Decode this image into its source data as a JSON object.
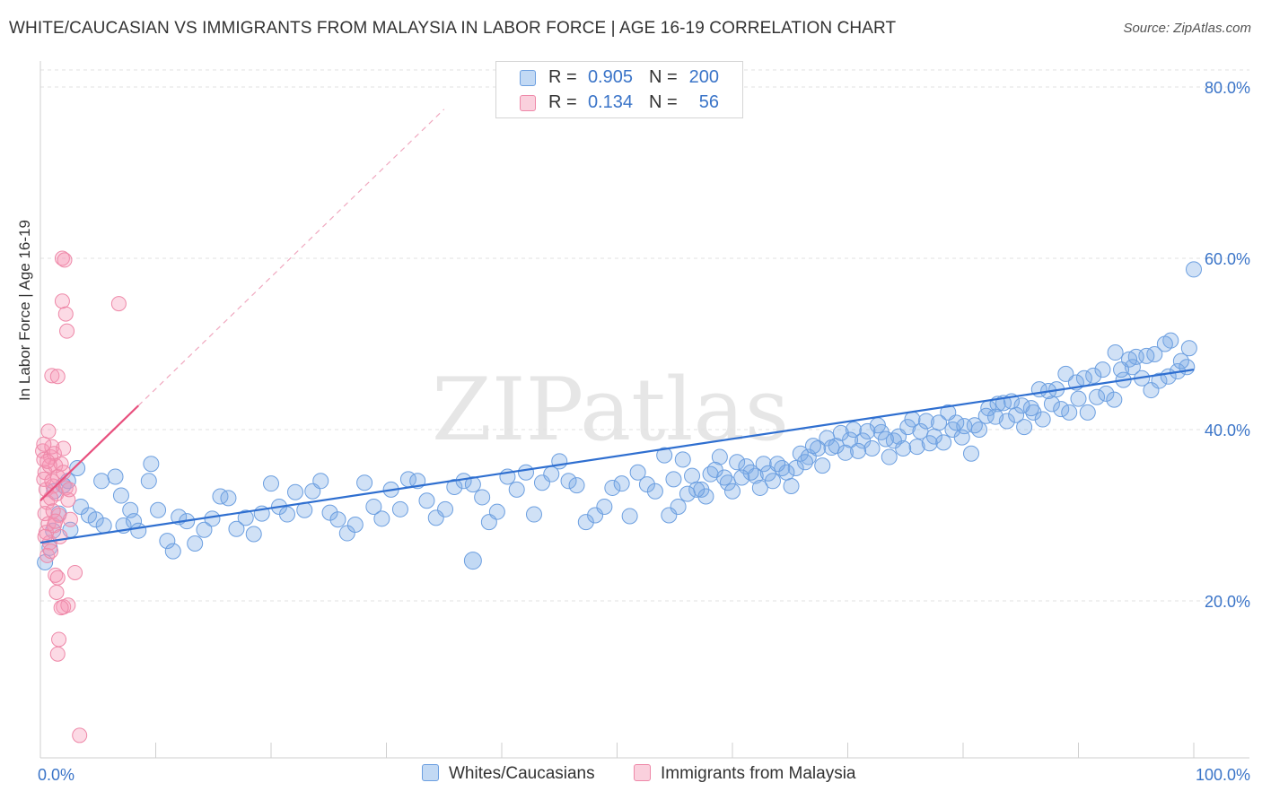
{
  "title": "WHITE/CAUCASIAN VS IMMIGRANTS FROM MALAYSIA IN LABOR FORCE | AGE 16-19 CORRELATION CHART",
  "source": "Source: ZipAtlas.com",
  "watermark": "ZIPatlas",
  "legend": {
    "series1": {
      "r_label": "R =",
      "r_value": "0.905",
      "n_label": "N =",
      "n_value": "200"
    },
    "series2": {
      "r_label": "R =",
      "r_value": "0.134",
      "n_label": "N =",
      "n_value": "56"
    }
  },
  "bottom_legend": {
    "series1": "Whites/Caucasians",
    "series2": "Immigrants from Malaysia"
  },
  "colors": {
    "blue_fill": "rgba(120,170,230,0.35)",
    "blue_stroke": "#6c9fe0",
    "blue_line": "#2f6fd0",
    "pink_fill": "rgba(245,150,180,0.35)",
    "pink_stroke": "#ee88a8",
    "pink_line": "#e8507e",
    "tick_text": "#3a74c8",
    "grid": "#e2e2e2"
  },
  "chart_data": {
    "type": "scatter",
    "title": "WHITE/CAUCASIAN VS IMMIGRANTS FROM MALAYSIA IN LABOR FORCE | AGE 16-19 CORRELATION CHART",
    "xlabel": "",
    "ylabel": "In Labor Force | Age 16-19",
    "xlim": [
      0,
      100
    ],
    "ylim": [
      0,
      85
    ],
    "x_tick_labels": [
      "0.0%",
      "100.0%"
    ],
    "y_ticks": [
      20,
      40,
      60,
      80
    ],
    "y_tick_labels": [
      "20.0%",
      "40.0%",
      "60.0%",
      "80.0%"
    ],
    "grid": true,
    "legend_placement": "top-center",
    "series": [
      {
        "name": "Whites/Caucasians",
        "r": 0.905,
        "n": 200,
        "trend": {
          "x": [
            0,
            100
          ],
          "y": [
            26.8,
            47.0
          ]
        },
        "points": [
          [
            0.4,
            24.5
          ],
          [
            0.8,
            26.2
          ],
          [
            1.1,
            28.2
          ],
          [
            1.6,
            30.2
          ],
          [
            1.2,
            32.8
          ],
          [
            2.0,
            33.5
          ],
          [
            2.4,
            34.0
          ],
          [
            3.2,
            35.5
          ],
          [
            2.6,
            28.3
          ],
          [
            3.5,
            31.0
          ],
          [
            4.2,
            30.0
          ],
          [
            5.3,
            34.0
          ],
          [
            6.5,
            34.5
          ],
          [
            4.8,
            29.5
          ],
          [
            5.5,
            28.8
          ],
          [
            7.0,
            32.3
          ],
          [
            7.8,
            30.6
          ],
          [
            7.2,
            28.8
          ],
          [
            8.1,
            29.3
          ],
          [
            9.4,
            34.0
          ],
          [
            8.5,
            28.2
          ],
          [
            9.6,
            36.0
          ],
          [
            10.2,
            30.6
          ],
          [
            11.0,
            27.0
          ],
          [
            11.5,
            25.8
          ],
          [
            12.0,
            29.8
          ],
          [
            12.7,
            29.3
          ],
          [
            13.4,
            26.7
          ],
          [
            14.2,
            28.3
          ],
          [
            14.9,
            29.6
          ],
          [
            15.6,
            32.2
          ],
          [
            16.3,
            32.0
          ],
          [
            17.0,
            28.4
          ],
          [
            17.8,
            29.7
          ],
          [
            18.5,
            27.8
          ],
          [
            19.2,
            30.2
          ],
          [
            20.0,
            33.7
          ],
          [
            20.7,
            31.0
          ],
          [
            21.4,
            30.1
          ],
          [
            22.1,
            32.7
          ],
          [
            22.9,
            30.6
          ],
          [
            23.6,
            32.8
          ],
          [
            24.3,
            34.0
          ],
          [
            25.1,
            30.3
          ],
          [
            25.8,
            29.5
          ],
          [
            26.6,
            27.9
          ],
          [
            27.3,
            28.9
          ],
          [
            28.1,
            33.8
          ],
          [
            28.9,
            31.0
          ],
          [
            29.6,
            29.6
          ],
          [
            30.4,
            33.0
          ],
          [
            31.2,
            30.7
          ],
          [
            31.9,
            34.2
          ],
          [
            32.7,
            34.0
          ],
          [
            33.5,
            31.7
          ],
          [
            34.3,
            29.7
          ],
          [
            35.1,
            30.7
          ],
          [
            35.9,
            33.3
          ],
          [
            36.7,
            34.0
          ],
          [
            37.5,
            33.6
          ],
          [
            38.3,
            32.1
          ],
          [
            38.9,
            29.2
          ],
          [
            39.6,
            30.4
          ],
          [
            40.5,
            34.5
          ],
          [
            41.3,
            33.0
          ],
          [
            42.1,
            35.0
          ],
          [
            42.8,
            30.1
          ],
          [
            43.5,
            33.8
          ],
          [
            44.3,
            34.8
          ],
          [
            45.0,
            36.3
          ],
          [
            45.8,
            34.0
          ],
          [
            46.5,
            33.5
          ],
          [
            47.3,
            29.2
          ],
          [
            48.1,
            30.0
          ],
          [
            48.9,
            31.0
          ],
          [
            49.6,
            33.2
          ],
          [
            50.4,
            33.7
          ],
          [
            51.1,
            29.9
          ],
          [
            51.8,
            35.0
          ],
          [
            52.6,
            33.6
          ],
          [
            53.3,
            32.8
          ],
          [
            54.1,
            37.0
          ],
          [
            54.9,
            34.2
          ],
          [
            55.7,
            36.5
          ],
          [
            56.5,
            34.6
          ],
          [
            57.3,
            33.0
          ],
          [
            58.1,
            34.8
          ],
          [
            58.9,
            36.8
          ],
          [
            59.6,
            33.8
          ],
          [
            60.4,
            36.2
          ],
          [
            61.2,
            35.7
          ],
          [
            62.0,
            34.6
          ],
          [
            62.7,
            36.0
          ],
          [
            63.5,
            34.0
          ],
          [
            64.3,
            35.5
          ],
          [
            65.1,
            33.4
          ],
          [
            65.9,
            37.2
          ],
          [
            66.6,
            36.8
          ],
          [
            67.4,
            37.8
          ],
          [
            68.2,
            39.0
          ],
          [
            69.0,
            38.1
          ],
          [
            69.8,
            37.3
          ],
          [
            70.5,
            40.0
          ],
          [
            71.3,
            38.7
          ],
          [
            72.1,
            37.8
          ],
          [
            72.9,
            39.7
          ],
          [
            73.6,
            36.8
          ],
          [
            74.4,
            39.2
          ],
          [
            75.2,
            40.3
          ],
          [
            76.0,
            38.0
          ],
          [
            76.8,
            41.0
          ],
          [
            77.5,
            39.2
          ],
          [
            78.3,
            38.5
          ],
          [
            79.1,
            40.0
          ],
          [
            79.9,
            39.1
          ],
          [
            80.7,
            37.2
          ],
          [
            81.4,
            40.0
          ],
          [
            82.2,
            42.5
          ],
          [
            83.0,
            43.0
          ],
          [
            83.8,
            41.0
          ],
          [
            84.6,
            41.7
          ],
          [
            85.3,
            40.3
          ],
          [
            86.1,
            42.0
          ],
          [
            86.9,
            41.2
          ],
          [
            87.7,
            43.0
          ],
          [
            88.5,
            42.4
          ],
          [
            89.2,
            42.0
          ],
          [
            90.0,
            43.6
          ],
          [
            90.8,
            42.0
          ],
          [
            91.6,
            43.8
          ],
          [
            92.4,
            44.2
          ],
          [
            93.1,
            43.5
          ],
          [
            93.9,
            45.8
          ],
          [
            94.7,
            47.3
          ],
          [
            95.5,
            46.0
          ],
          [
            96.3,
            44.6
          ],
          [
            97.0,
            45.7
          ],
          [
            97.8,
            46.2
          ],
          [
            98.6,
            46.8
          ],
          [
            99.4,
            47.3
          ],
          [
            100.0,
            58.7
          ],
          [
            99.6,
            49.5
          ],
          [
            98.9,
            48.0
          ],
          [
            98.0,
            50.4
          ],
          [
            97.5,
            50.0
          ],
          [
            96.6,
            48.8
          ],
          [
            95.9,
            48.6
          ],
          [
            95.0,
            48.5
          ],
          [
            94.4,
            48.2
          ],
          [
            93.7,
            47.0
          ],
          [
            93.2,
            49.0
          ],
          [
            92.1,
            47.0
          ],
          [
            91.3,
            46.3
          ],
          [
            90.5,
            46.0
          ],
          [
            89.8,
            45.5
          ],
          [
            88.9,
            46.5
          ],
          [
            88.1,
            44.7
          ],
          [
            87.4,
            44.5
          ],
          [
            86.6,
            44.7
          ],
          [
            85.9,
            42.5
          ],
          [
            85.1,
            42.8
          ],
          [
            84.2,
            43.3
          ],
          [
            83.5,
            43.1
          ],
          [
            82.8,
            41.5
          ],
          [
            82.0,
            41.6
          ],
          [
            81.0,
            40.5
          ],
          [
            80.1,
            40.4
          ],
          [
            79.4,
            40.8
          ],
          [
            78.7,
            42.0
          ],
          [
            77.9,
            40.8
          ],
          [
            77.1,
            38.4
          ],
          [
            76.3,
            39.8
          ],
          [
            75.6,
            41.2
          ],
          [
            74.8,
            37.8
          ],
          [
            74.0,
            38.7
          ],
          [
            73.3,
            38.9
          ],
          [
            72.6,
            40.5
          ],
          [
            71.7,
            39.8
          ],
          [
            70.9,
            37.5
          ],
          [
            70.2,
            38.8
          ],
          [
            69.4,
            39.6
          ],
          [
            68.6,
            37.9
          ],
          [
            67.8,
            35.8
          ],
          [
            67.0,
            38.1
          ],
          [
            66.3,
            36.2
          ],
          [
            65.5,
            35.5
          ],
          [
            64.7,
            35.0
          ],
          [
            63.9,
            36.0
          ],
          [
            63.1,
            34.9
          ],
          [
            62.4,
            33.2
          ],
          [
            61.6,
            35.0
          ],
          [
            60.8,
            34.4
          ],
          [
            60.0,
            32.8
          ],
          [
            59.3,
            34.4
          ],
          [
            58.5,
            35.3
          ],
          [
            57.7,
            32.2
          ],
          [
            56.9,
            33.0
          ],
          [
            56.1,
            32.5
          ],
          [
            55.3,
            31.0
          ],
          [
            54.5,
            30.0
          ]
        ]
      },
      {
        "name": "Immigrants from Malaysia",
        "r": 0.134,
        "n": 56,
        "trend": {
          "x": [
            0,
            8.5
          ],
          "y": [
            31.7,
            42.8
          ]
        },
        "points": [
          [
            0.2,
            37.5
          ],
          [
            0.3,
            36.5
          ],
          [
            0.4,
            35.0
          ],
          [
            0.5,
            33.0
          ],
          [
            0.3,
            34.2
          ],
          [
            0.6,
            31.5
          ],
          [
            0.4,
            30.2
          ],
          [
            0.7,
            29.0
          ],
          [
            0.5,
            28.0
          ],
          [
            0.8,
            26.8
          ],
          [
            0.6,
            25.3
          ],
          [
            0.9,
            36.8
          ],
          [
            1.0,
            38.0
          ],
          [
            1.2,
            37.2
          ],
          [
            1.3,
            35.8
          ],
          [
            1.5,
            34.5
          ],
          [
            1.1,
            33.4
          ],
          [
            1.4,
            32.5
          ],
          [
            1.6,
            30.0
          ],
          [
            1.2,
            28.8
          ],
          [
            1.7,
            27.5
          ],
          [
            1.8,
            36.0
          ],
          [
            2.0,
            35.0
          ],
          [
            2.2,
            33.2
          ],
          [
            2.4,
            31.8
          ],
          [
            2.6,
            29.5
          ],
          [
            0.3,
            38.3
          ],
          [
            0.7,
            39.8
          ],
          [
            1.0,
            46.3
          ],
          [
            1.5,
            46.2
          ],
          [
            1.9,
            60.0
          ],
          [
            2.1,
            59.8
          ],
          [
            1.9,
            55.0
          ],
          [
            2.2,
            53.5
          ],
          [
            2.3,
            51.5
          ],
          [
            6.8,
            54.7
          ],
          [
            1.3,
            23.0
          ],
          [
            1.5,
            22.7
          ],
          [
            2.0,
            19.3
          ],
          [
            2.4,
            19.5
          ],
          [
            3.0,
            23.3
          ],
          [
            1.6,
            15.5
          ],
          [
            1.5,
            13.8
          ],
          [
            3.4,
            4.3
          ],
          [
            0.8,
            35.8
          ],
          [
            1.0,
            34.0
          ],
          [
            0.9,
            32.0
          ],
          [
            1.1,
            30.5
          ],
          [
            0.4,
            27.5
          ],
          [
            0.6,
            36.3
          ],
          [
            1.4,
            21.0
          ],
          [
            1.8,
            19.2
          ],
          [
            2.5,
            33.0
          ],
          [
            2.0,
            37.8
          ],
          [
            1.3,
            29.3
          ],
          [
            0.9,
            25.8
          ]
        ]
      }
    ]
  }
}
